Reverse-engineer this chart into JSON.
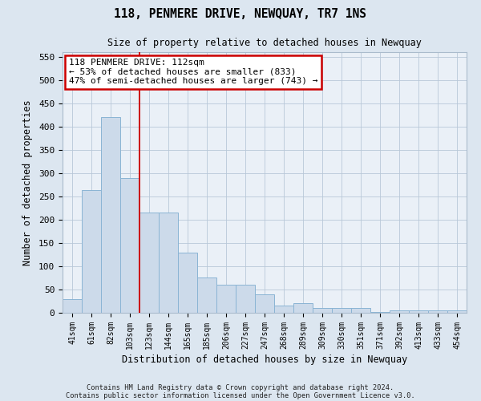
{
  "title": "118, PENMERE DRIVE, NEWQUAY, TR7 1NS",
  "subtitle": "Size of property relative to detached houses in Newquay",
  "xlabel": "Distribution of detached houses by size in Newquay",
  "ylabel": "Number of detached properties",
  "categories": [
    "41sqm",
    "61sqm",
    "82sqm",
    "103sqm",
    "123sqm",
    "144sqm",
    "165sqm",
    "185sqm",
    "206sqm",
    "227sqm",
    "247sqm",
    "268sqm",
    "289sqm",
    "309sqm",
    "330sqm",
    "351sqm",
    "371sqm",
    "392sqm",
    "413sqm",
    "433sqm",
    "454sqm"
  ],
  "values": [
    30,
    263,
    420,
    290,
    215,
    215,
    130,
    75,
    60,
    60,
    40,
    15,
    20,
    10,
    10,
    10,
    2,
    5,
    5,
    5,
    5
  ],
  "bar_color": "#ccdaea",
  "bar_edge_color": "#8ab4d4",
  "vline_color": "#cc0000",
  "vline_x": 3.5,
  "annotation_line1": "118 PENMERE DRIVE: 112sqm",
  "annotation_line2": "← 53% of detached houses are smaller (833)",
  "annotation_line3": "47% of semi-detached houses are larger (743) →",
  "annotation_box_color": "#ffffff",
  "annotation_box_edge_color": "#cc0000",
  "ylim": [
    0,
    560
  ],
  "yticks": [
    0,
    50,
    100,
    150,
    200,
    250,
    300,
    350,
    400,
    450,
    500,
    550
  ],
  "footer1": "Contains HM Land Registry data © Crown copyright and database right 2024.",
  "footer2": "Contains public sector information licensed under the Open Government Licence v3.0.",
  "bg_color": "#dce6f0",
  "plot_bg_color": "#eaf0f7"
}
